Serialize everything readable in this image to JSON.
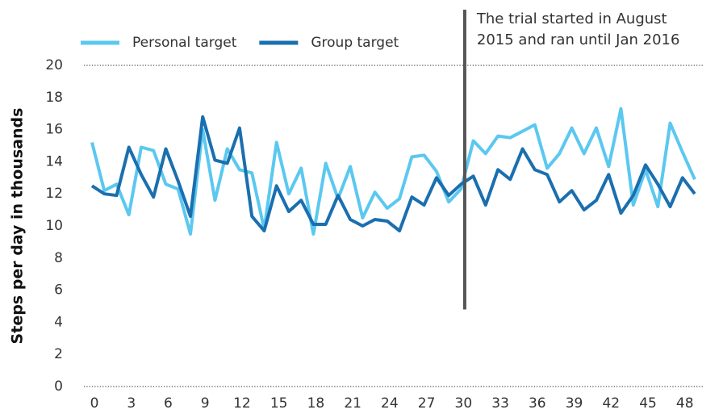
{
  "chart_data": {
    "type": "line",
    "y_label": "Steps per day in thousands",
    "annotation": {
      "lines": [
        "The trial started in August",
        "2015 and ran until Jan 2016"
      ],
      "x": 30.3,
      "y_bottom": 4.8,
      "color": "#555555"
    },
    "x": [
      0,
      1,
      2,
      3,
      4,
      5,
      6,
      7,
      8,
      9,
      10,
      11,
      12,
      13,
      14,
      15,
      16,
      17,
      18,
      19,
      20,
      21,
      22,
      23,
      24,
      25,
      26,
      27,
      28,
      29,
      30,
      31,
      32,
      33,
      34,
      35,
      36,
      37,
      38,
      39,
      40,
      41,
      42,
      43,
      44,
      45,
      46,
      47,
      48,
      49
    ],
    "series": [
      {
        "name": "Personal target",
        "color": "#5bc8f0",
        "values": [
          15.2,
          12.2,
          12.6,
          10.7,
          14.9,
          14.7,
          12.6,
          12.3,
          9.5,
          16.0,
          11.6,
          14.8,
          13.5,
          13.3,
          9.8,
          15.2,
          12.0,
          13.6,
          9.5,
          13.9,
          11.7,
          13.7,
          10.5,
          12.1,
          11.1,
          11.7,
          14.3,
          14.4,
          13.4,
          11.5,
          12.3,
          15.3,
          14.5,
          15.6,
          15.5,
          15.9,
          16.3,
          13.6,
          14.5,
          16.1,
          14.5,
          16.1,
          13.7,
          17.3,
          11.3,
          13.5,
          11.2,
          16.4,
          14.6,
          12.9
        ]
      },
      {
        "name": "Group target",
        "color": "#1a6faf",
        "values": [
          12.5,
          12.0,
          11.9,
          14.9,
          13.2,
          11.8,
          14.8,
          12.8,
          10.6,
          16.8,
          14.1,
          13.9,
          16.1,
          10.6,
          9.7,
          12.5,
          10.9,
          11.6,
          10.1,
          10.1,
          11.9,
          10.4,
          10.0,
          10.4,
          10.3,
          9.7,
          11.8,
          11.3,
          13.0,
          11.9,
          12.6,
          13.1,
          11.3,
          13.5,
          12.9,
          14.8,
          13.5,
          13.2,
          11.5,
          12.2,
          11.0,
          11.6,
          13.2,
          10.8,
          11.9,
          13.8,
          12.6,
          11.2,
          13.0,
          12.0
        ]
      }
    ],
    "xlim": [
      0,
      49
    ],
    "xticks": [
      0,
      3,
      6,
      9,
      12,
      15,
      18,
      21,
      24,
      27,
      30,
      33,
      36,
      39,
      42,
      45,
      48
    ],
    "ylim": [
      0,
      20
    ],
    "yticks": [
      0,
      2,
      4,
      6,
      8,
      10,
      12,
      14,
      16,
      18,
      20
    ],
    "grid_at": [
      0,
      20
    ],
    "legend": "top"
  }
}
